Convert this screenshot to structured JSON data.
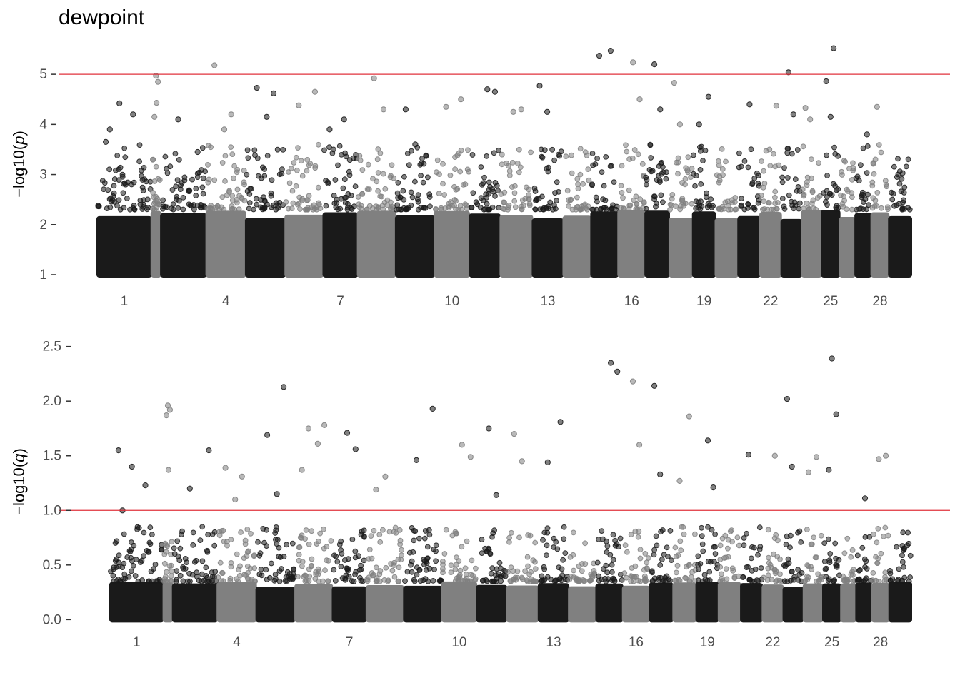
{
  "title": "dewpoint",
  "colors": {
    "dark_points": "#1a1a1a",
    "light_points": "#808080",
    "threshold_line": "#e0323c",
    "tick_text": "#4d4d4d"
  },
  "chart_data": [
    {
      "type": "scatter",
      "subtype": "manhattan",
      "ylabel": "−log10(p)",
      "ylabel_var": "p",
      "ylim": [
        0.9,
        5.6
      ],
      "yticks": [
        1,
        2,
        3,
        4,
        5
      ],
      "ytick_labels": [
        "1",
        "2",
        "3",
        "4",
        "5"
      ],
      "x_tick_labels": [
        "1",
        "4",
        "7",
        "10",
        "13",
        "16",
        "19",
        "22",
        "25",
        "28"
      ],
      "threshold": 5,
      "grid": false,
      "legend": "none",
      "chromosome_count": 29,
      "baseline_min": 1.0,
      "highlighted_points": [
        {
          "chrom": 1,
          "y": 3.65
        },
        {
          "chrom": 1,
          "y": 4.42
        },
        {
          "chrom": 1,
          "y": 4.2
        },
        {
          "chrom": 1,
          "y": 3.9
        },
        {
          "chrom": 2,
          "y": 4.97
        },
        {
          "chrom": 2,
          "y": 4.85
        },
        {
          "chrom": 2,
          "y": 4.15
        },
        {
          "chrom": 2,
          "y": 4.43
        },
        {
          "chrom": 3,
          "y": 3.45
        },
        {
          "chrom": 3,
          "y": 4.1
        },
        {
          "chrom": 4,
          "y": 4.2
        },
        {
          "chrom": 4,
          "y": 5.18
        },
        {
          "chrom": 4,
          "y": 3.9
        },
        {
          "chrom": 5,
          "y": 4.62
        },
        {
          "chrom": 5,
          "y": 4.73
        },
        {
          "chrom": 5,
          "y": 4.15
        },
        {
          "chrom": 6,
          "y": 4.65
        },
        {
          "chrom": 6,
          "y": 4.38
        },
        {
          "chrom": 7,
          "y": 4.1
        },
        {
          "chrom": 7,
          "y": 3.9
        },
        {
          "chrom": 8,
          "y": 4.92
        },
        {
          "chrom": 8,
          "y": 4.3
        },
        {
          "chrom": 9,
          "y": 4.3
        },
        {
          "chrom": 9,
          "y": 3.6
        },
        {
          "chrom": 10,
          "y": 4.5
        },
        {
          "chrom": 10,
          "y": 4.35
        },
        {
          "chrom": 11,
          "y": 4.7
        },
        {
          "chrom": 11,
          "y": 4.65
        },
        {
          "chrom": 12,
          "y": 4.25
        },
        {
          "chrom": 12,
          "y": 4.3
        },
        {
          "chrom": 13,
          "y": 4.77
        },
        {
          "chrom": 13,
          "y": 4.25
        },
        {
          "chrom": 15,
          "y": 5.47
        },
        {
          "chrom": 15,
          "y": 5.37
        },
        {
          "chrom": 16,
          "y": 5.24
        },
        {
          "chrom": 16,
          "y": 4.5
        },
        {
          "chrom": 17,
          "y": 5.2
        },
        {
          "chrom": 17,
          "y": 4.3
        },
        {
          "chrom": 18,
          "y": 4.83
        },
        {
          "chrom": 18,
          "y": 4.0
        },
        {
          "chrom": 19,
          "y": 4.55
        },
        {
          "chrom": 19,
          "y": 4.0
        },
        {
          "chrom": 21,
          "y": 4.4
        },
        {
          "chrom": 22,
          "y": 4.37
        },
        {
          "chrom": 23,
          "y": 5.04
        },
        {
          "chrom": 23,
          "y": 4.2
        },
        {
          "chrom": 24,
          "y": 4.33
        },
        {
          "chrom": 24,
          "y": 4.1
        },
        {
          "chrom": 25,
          "y": 5.52
        },
        {
          "chrom": 25,
          "y": 4.86
        },
        {
          "chrom": 25,
          "y": 4.15
        },
        {
          "chrom": 27,
          "y": 3.8
        },
        {
          "chrom": 28,
          "y": 4.35
        }
      ]
    },
    {
      "type": "scatter",
      "subtype": "manhattan",
      "ylabel": "−log10(q)",
      "ylabel_var": "q",
      "ylim": [
        -0.05,
        2.55
      ],
      "yticks": [
        0.0,
        0.5,
        1.0,
        1.5,
        2.0,
        2.5
      ],
      "ytick_labels": [
        "0.0",
        "0.5",
        "1.0",
        "1.5",
        "2.0",
        "2.5"
      ],
      "x_tick_labels": [
        "1",
        "4",
        "7",
        "10",
        "13",
        "16",
        "19",
        "22",
        "25",
        "28"
      ],
      "threshold": 1.0,
      "grid": false,
      "legend": "none",
      "chromosome_count": 29,
      "baseline_min": 0.0,
      "highlighted_points": [
        {
          "chrom": 1,
          "y": 1.55
        },
        {
          "chrom": 1,
          "y": 1.4
        },
        {
          "chrom": 1,
          "y": 1.23
        },
        {
          "chrom": 1,
          "y": 1.0
        },
        {
          "chrom": 2,
          "y": 1.96
        },
        {
          "chrom": 2,
          "y": 1.92
        },
        {
          "chrom": 2,
          "y": 1.87
        },
        {
          "chrom": 2,
          "y": 1.37
        },
        {
          "chrom": 3,
          "y": 1.55
        },
        {
          "chrom": 3,
          "y": 1.2
        },
        {
          "chrom": 4,
          "y": 1.31
        },
        {
          "chrom": 4,
          "y": 1.39
        },
        {
          "chrom": 4,
          "y": 1.1
        },
        {
          "chrom": 5,
          "y": 2.13
        },
        {
          "chrom": 5,
          "y": 1.69
        },
        {
          "chrom": 5,
          "y": 1.15
        },
        {
          "chrom": 6,
          "y": 1.78
        },
        {
          "chrom": 6,
          "y": 1.75
        },
        {
          "chrom": 6,
          "y": 1.61
        },
        {
          "chrom": 6,
          "y": 1.37
        },
        {
          "chrom": 7,
          "y": 1.71
        },
        {
          "chrom": 7,
          "y": 1.56
        },
        {
          "chrom": 8,
          "y": 1.19
        },
        {
          "chrom": 8,
          "y": 1.31
        },
        {
          "chrom": 9,
          "y": 1.93
        },
        {
          "chrom": 9,
          "y": 1.46
        },
        {
          "chrom": 10,
          "y": 1.6
        },
        {
          "chrom": 10,
          "y": 1.49
        },
        {
          "chrom": 11,
          "y": 1.75
        },
        {
          "chrom": 11,
          "y": 1.14
        },
        {
          "chrom": 12,
          "y": 1.7
        },
        {
          "chrom": 12,
          "y": 1.45
        },
        {
          "chrom": 13,
          "y": 1.81
        },
        {
          "chrom": 13,
          "y": 1.44
        },
        {
          "chrom": 15,
          "y": 2.35
        },
        {
          "chrom": 15,
          "y": 2.27
        },
        {
          "chrom": 16,
          "y": 2.18
        },
        {
          "chrom": 16,
          "y": 1.6
        },
        {
          "chrom": 17,
          "y": 2.14
        },
        {
          "chrom": 17,
          "y": 1.33
        },
        {
          "chrom": 18,
          "y": 1.86
        },
        {
          "chrom": 18,
          "y": 1.27
        },
        {
          "chrom": 19,
          "y": 1.64
        },
        {
          "chrom": 19,
          "y": 1.21
        },
        {
          "chrom": 21,
          "y": 1.51
        },
        {
          "chrom": 22,
          "y": 1.5
        },
        {
          "chrom": 23,
          "y": 2.02
        },
        {
          "chrom": 23,
          "y": 1.4
        },
        {
          "chrom": 24,
          "y": 1.49
        },
        {
          "chrom": 24,
          "y": 1.35
        },
        {
          "chrom": 25,
          "y": 2.39
        },
        {
          "chrom": 25,
          "y": 1.88
        },
        {
          "chrom": 25,
          "y": 1.37
        },
        {
          "chrom": 27,
          "y": 1.11
        },
        {
          "chrom": 28,
          "y": 1.5
        },
        {
          "chrom": 28,
          "y": 1.47
        }
      ]
    }
  ]
}
